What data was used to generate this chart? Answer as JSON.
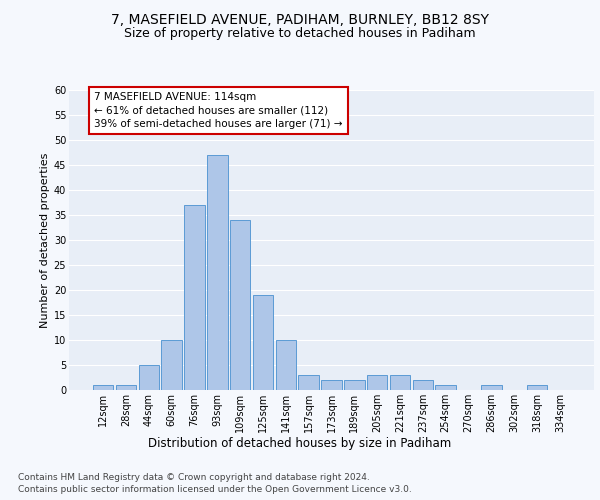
{
  "title1": "7, MASEFIELD AVENUE, PADIHAM, BURNLEY, BB12 8SY",
  "title2": "Size of property relative to detached houses in Padiham",
  "xlabel": "Distribution of detached houses by size in Padiham",
  "ylabel": "Number of detached properties",
  "categories": [
    "12sqm",
    "28sqm",
    "44sqm",
    "60sqm",
    "76sqm",
    "93sqm",
    "109sqm",
    "125sqm",
    "141sqm",
    "157sqm",
    "173sqm",
    "189sqm",
    "205sqm",
    "221sqm",
    "237sqm",
    "254sqm",
    "270sqm",
    "286sqm",
    "302sqm",
    "318sqm",
    "334sqm"
  ],
  "values": [
    1,
    1,
    5,
    10,
    37,
    47,
    34,
    19,
    10,
    3,
    2,
    2,
    3,
    3,
    2,
    1,
    0,
    1,
    0,
    1,
    0
  ],
  "bar_color": "#aec6e8",
  "bar_edge_color": "#5b9bd5",
  "annotation_box_text": "7 MASEFIELD AVENUE: 114sqm\n← 61% of detached houses are smaller (112)\n39% of semi-detached houses are larger (71) →",
  "annotation_box_color": "#ffffff",
  "annotation_box_edge_color": "#cc0000",
  "ylim": [
    0,
    60
  ],
  "yticks": [
    0,
    5,
    10,
    15,
    20,
    25,
    30,
    35,
    40,
    45,
    50,
    55,
    60
  ],
  "plot_bg_color": "#e8eef7",
  "fig_bg_color": "#f5f8fd",
  "grid_color": "#ffffff",
  "footer_line1": "Contains HM Land Registry data © Crown copyright and database right 2024.",
  "footer_line2": "Contains public sector information licensed under the Open Government Licence v3.0.",
  "title1_fontsize": 10,
  "title2_fontsize": 9,
  "xlabel_fontsize": 8.5,
  "ylabel_fontsize": 8,
  "tick_fontsize": 7,
  "annotation_fontsize": 7.5,
  "footer_fontsize": 6.5
}
